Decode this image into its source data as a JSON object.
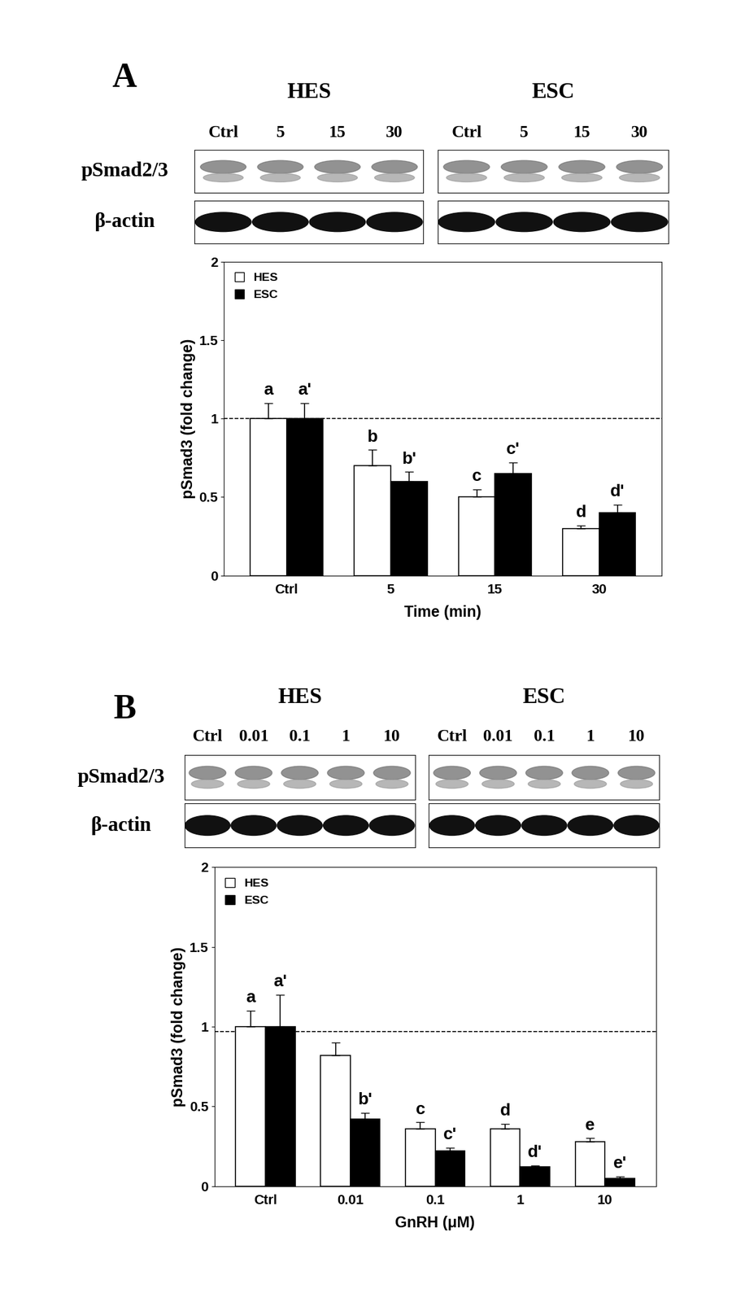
{
  "chart_data": [
    {
      "type": "bar",
      "panel": "A",
      "blot": {
        "groups": [
          {
            "name": "HES",
            "lanes": [
              "Ctrl",
              "5",
              "15",
              "30"
            ]
          },
          {
            "name": "ESC",
            "lanes": [
              "Ctrl",
              "5",
              "15",
              "30"
            ]
          }
        ],
        "rows": [
          "pSmad2/3",
          "β-actin"
        ]
      },
      "categories": [
        "Ctrl",
        "5",
        "15",
        "30"
      ],
      "x_label": "Time (min)",
      "y_label": "pSmad3 (fold change)",
      "ylim": [
        0,
        2
      ],
      "yticks": [
        0,
        0.5,
        1,
        1.5,
        2
      ],
      "reference_line": 1,
      "legend": "upper left",
      "series": [
        {
          "name": "HES",
          "color": "#ffffff",
          "values": [
            1.0,
            0.7,
            0.5,
            0.3
          ],
          "errors": [
            0.1,
            0.1,
            0.05,
            0.02
          ],
          "letters": [
            "a",
            "b",
            "c",
            "d"
          ]
        },
        {
          "name": "ESC",
          "color": "#000000",
          "values": [
            1.0,
            0.6,
            0.65,
            0.4
          ],
          "errors": [
            0.1,
            0.06,
            0.07,
            0.05
          ],
          "letters": [
            "a'",
            "b'",
            "c'",
            "d'"
          ]
        }
      ]
    },
    {
      "type": "bar",
      "panel": "B",
      "blot": {
        "groups": [
          {
            "name": "HES",
            "lanes": [
              "Ctrl",
              "0.01",
              "0.1",
              "1",
              "10"
            ]
          },
          {
            "name": "ESC",
            "lanes": [
              "Ctrl",
              "0.01",
              "0.1",
              "1",
              "10"
            ]
          }
        ],
        "rows": [
          "pSmad2/3",
          "β-actin"
        ]
      },
      "categories": [
        "Ctrl",
        "0.01",
        "0.1",
        "1",
        "10"
      ],
      "x_label": "GnRH (μM)",
      "y_label": "pSmad3 (fold change)",
      "ylim": [
        0,
        2
      ],
      "yticks": [
        0,
        0.5,
        1,
        1.5,
        2
      ],
      "reference_line": 0.97,
      "legend": "upper left",
      "series": [
        {
          "name": "HES",
          "color": "#ffffff",
          "values": [
            1.0,
            0.82,
            0.36,
            0.36,
            0.28
          ],
          "errors": [
            0.1,
            0.08,
            0.04,
            0.03,
            0.02
          ],
          "letters": [
            "a",
            null,
            "c",
            "d",
            "e"
          ]
        },
        {
          "name": "ESC",
          "color": "#000000",
          "values": [
            1.0,
            0.42,
            0.22,
            0.12,
            0.05
          ],
          "errors": [
            0.2,
            0.04,
            0.02,
            0.01,
            0.01
          ],
          "letters": [
            "a'",
            "b'",
            "c'",
            "d'",
            "e'"
          ]
        }
      ]
    }
  ]
}
